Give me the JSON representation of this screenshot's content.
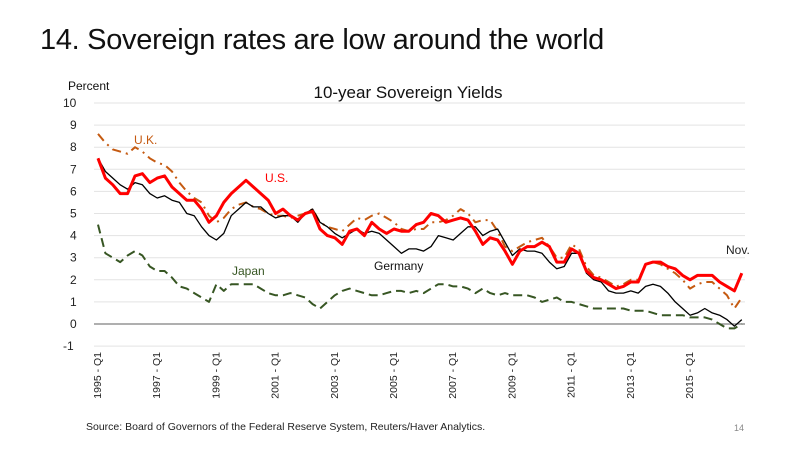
{
  "slide": {
    "title": "14. Sovereign rates are low around the world",
    "source": "Source: Board of Governors of the Federal Reserve System, Reuters/Haver Analytics.",
    "page_number": "14"
  },
  "chart_data": {
    "type": "line",
    "title": "10-year Sovereign Yields",
    "ylabel": "Percent",
    "xlabel": "",
    "ylim": [
      -1,
      10
    ],
    "yticks": [
      -1,
      0,
      1,
      2,
      3,
      4,
      5,
      6,
      7,
      8,
      9,
      10
    ],
    "grid": true,
    "legend": "inline labels",
    "x_start": "1995 - Q1",
    "x_frequency": "quarterly",
    "xtick_labels": [
      "1995 - Q1",
      "1997 - Q1",
      "1999 - Q1",
      "2001 - Q1",
      "2003 - Q1",
      "2005 - Q1",
      "2007 - Q1",
      "2009 - Q1",
      "2011 - Q1",
      "2013 - Q1",
      "2015 - Q1"
    ],
    "xtick_quarter_index": [
      0,
      8,
      16,
      24,
      32,
      40,
      48,
      56,
      64,
      72,
      80
    ],
    "annotations": [
      {
        "text": "Nov.",
        "at": "last point"
      }
    ],
    "series": [
      {
        "name": "U.K.",
        "label": "U.K.",
        "color": "#C55A11",
        "style": "dash-dot",
        "values": [
          8.6,
          8.2,
          7.9,
          7.8,
          7.7,
          8.0,
          7.8,
          7.5,
          7.3,
          7.2,
          6.9,
          6.4,
          6.0,
          5.7,
          5.5,
          4.9,
          4.6,
          4.8,
          5.2,
          5.4,
          5.5,
          5.3,
          5.2,
          5.0,
          4.9,
          4.9,
          4.8,
          4.9,
          5.0,
          5.2,
          4.6,
          4.4,
          4.3,
          4.2,
          4.5,
          4.8,
          4.7,
          4.9,
          5.0,
          4.8,
          4.6,
          4.3,
          4.2,
          4.3,
          4.3,
          4.6,
          4.6,
          4.7,
          4.9,
          5.2,
          5.0,
          4.6,
          4.7,
          4.7,
          4.2,
          3.5,
          3.3,
          3.5,
          3.7,
          3.8,
          3.9,
          3.5,
          3.0,
          3.0,
          3.6,
          3.4,
          2.6,
          2.2,
          2.1,
          1.9,
          1.7,
          1.8,
          2.0,
          2.0,
          2.7,
          2.8,
          2.7,
          2.5,
          2.3,
          2.0,
          1.6,
          1.8,
          1.9,
          1.9,
          1.6,
          1.3,
          0.7,
          1.2
        ]
      },
      {
        "name": "U.S.",
        "label": "U.S.",
        "color": "#FF0000",
        "style": "solid-thick",
        "values": [
          7.5,
          6.6,
          6.3,
          5.9,
          5.9,
          6.7,
          6.8,
          6.4,
          6.6,
          6.7,
          6.2,
          5.9,
          5.6,
          5.6,
          5.2,
          4.6,
          4.9,
          5.5,
          5.9,
          6.2,
          6.5,
          6.2,
          5.9,
          5.6,
          5.0,
          5.2,
          4.9,
          4.7,
          5.0,
          5.1,
          4.3,
          4.0,
          3.9,
          3.6,
          4.2,
          4.3,
          4.0,
          4.6,
          4.3,
          4.1,
          4.3,
          4.2,
          4.2,
          4.5,
          4.6,
          5.0,
          4.9,
          4.6,
          4.7,
          4.8,
          4.7,
          4.2,
          3.6,
          3.9,
          3.8,
          3.3,
          2.7,
          3.3,
          3.5,
          3.5,
          3.7,
          3.5,
          2.8,
          2.8,
          3.4,
          3.2,
          2.4,
          2.1,
          2.0,
          1.8,
          1.6,
          1.7,
          1.9,
          1.9,
          2.7,
          2.8,
          2.8,
          2.6,
          2.5,
          2.2,
          2.0,
          2.2,
          2.2,
          2.2,
          1.9,
          1.7,
          1.5,
          2.3
        ]
      },
      {
        "name": "Germany",
        "label": "Germany",
        "color": "#000000",
        "style": "solid-thin",
        "values": [
          7.5,
          6.9,
          6.6,
          6.3,
          6.1,
          6.4,
          6.3,
          5.9,
          5.7,
          5.8,
          5.6,
          5.5,
          5.0,
          4.9,
          4.4,
          4.0,
          3.8,
          4.1,
          4.9,
          5.2,
          5.5,
          5.3,
          5.3,
          5.0,
          4.8,
          4.9,
          4.9,
          4.6,
          5.0,
          5.2,
          4.6,
          4.4,
          4.1,
          3.9,
          4.1,
          4.3,
          4.1,
          4.2,
          4.1,
          3.8,
          3.5,
          3.2,
          3.4,
          3.4,
          3.3,
          3.5,
          4.0,
          3.9,
          3.8,
          4.1,
          4.4,
          4.4,
          4.0,
          4.2,
          4.3,
          3.7,
          3.1,
          3.4,
          3.3,
          3.3,
          3.2,
          2.8,
          2.5,
          2.6,
          3.2,
          3.2,
          2.3,
          2.0,
          1.9,
          1.5,
          1.4,
          1.4,
          1.5,
          1.4,
          1.7,
          1.8,
          1.7,
          1.4,
          1.0,
          0.7,
          0.4,
          0.5,
          0.7,
          0.5,
          0.4,
          0.2,
          -0.1,
          0.2
        ]
      },
      {
        "name": "Japan",
        "label": "Japan",
        "color": "#375623",
        "style": "dashed",
        "values": [
          4.5,
          3.2,
          3.0,
          2.8,
          3.1,
          3.3,
          3.1,
          2.6,
          2.4,
          2.4,
          2.1,
          1.7,
          1.6,
          1.4,
          1.2,
          1.0,
          1.8,
          1.5,
          1.8,
          1.8,
          1.8,
          1.8,
          1.6,
          1.4,
          1.3,
          1.3,
          1.4,
          1.3,
          1.2,
          0.9,
          0.7,
          1.0,
          1.3,
          1.5,
          1.6,
          1.5,
          1.4,
          1.3,
          1.3,
          1.4,
          1.5,
          1.5,
          1.4,
          1.5,
          1.4,
          1.6,
          1.8,
          1.8,
          1.7,
          1.7,
          1.6,
          1.4,
          1.6,
          1.4,
          1.3,
          1.4,
          1.3,
          1.3,
          1.3,
          1.2,
          1.0,
          1.1,
          1.2,
          1.0,
          1.0,
          0.9,
          0.8,
          0.7,
          0.7,
          0.7,
          0.7,
          0.7,
          0.6,
          0.6,
          0.6,
          0.5,
          0.4,
          0.4,
          0.4,
          0.4,
          0.3,
          0.3,
          0.3,
          0.2,
          0.0,
          -0.2,
          -0.2,
          0.0
        ]
      }
    ]
  }
}
